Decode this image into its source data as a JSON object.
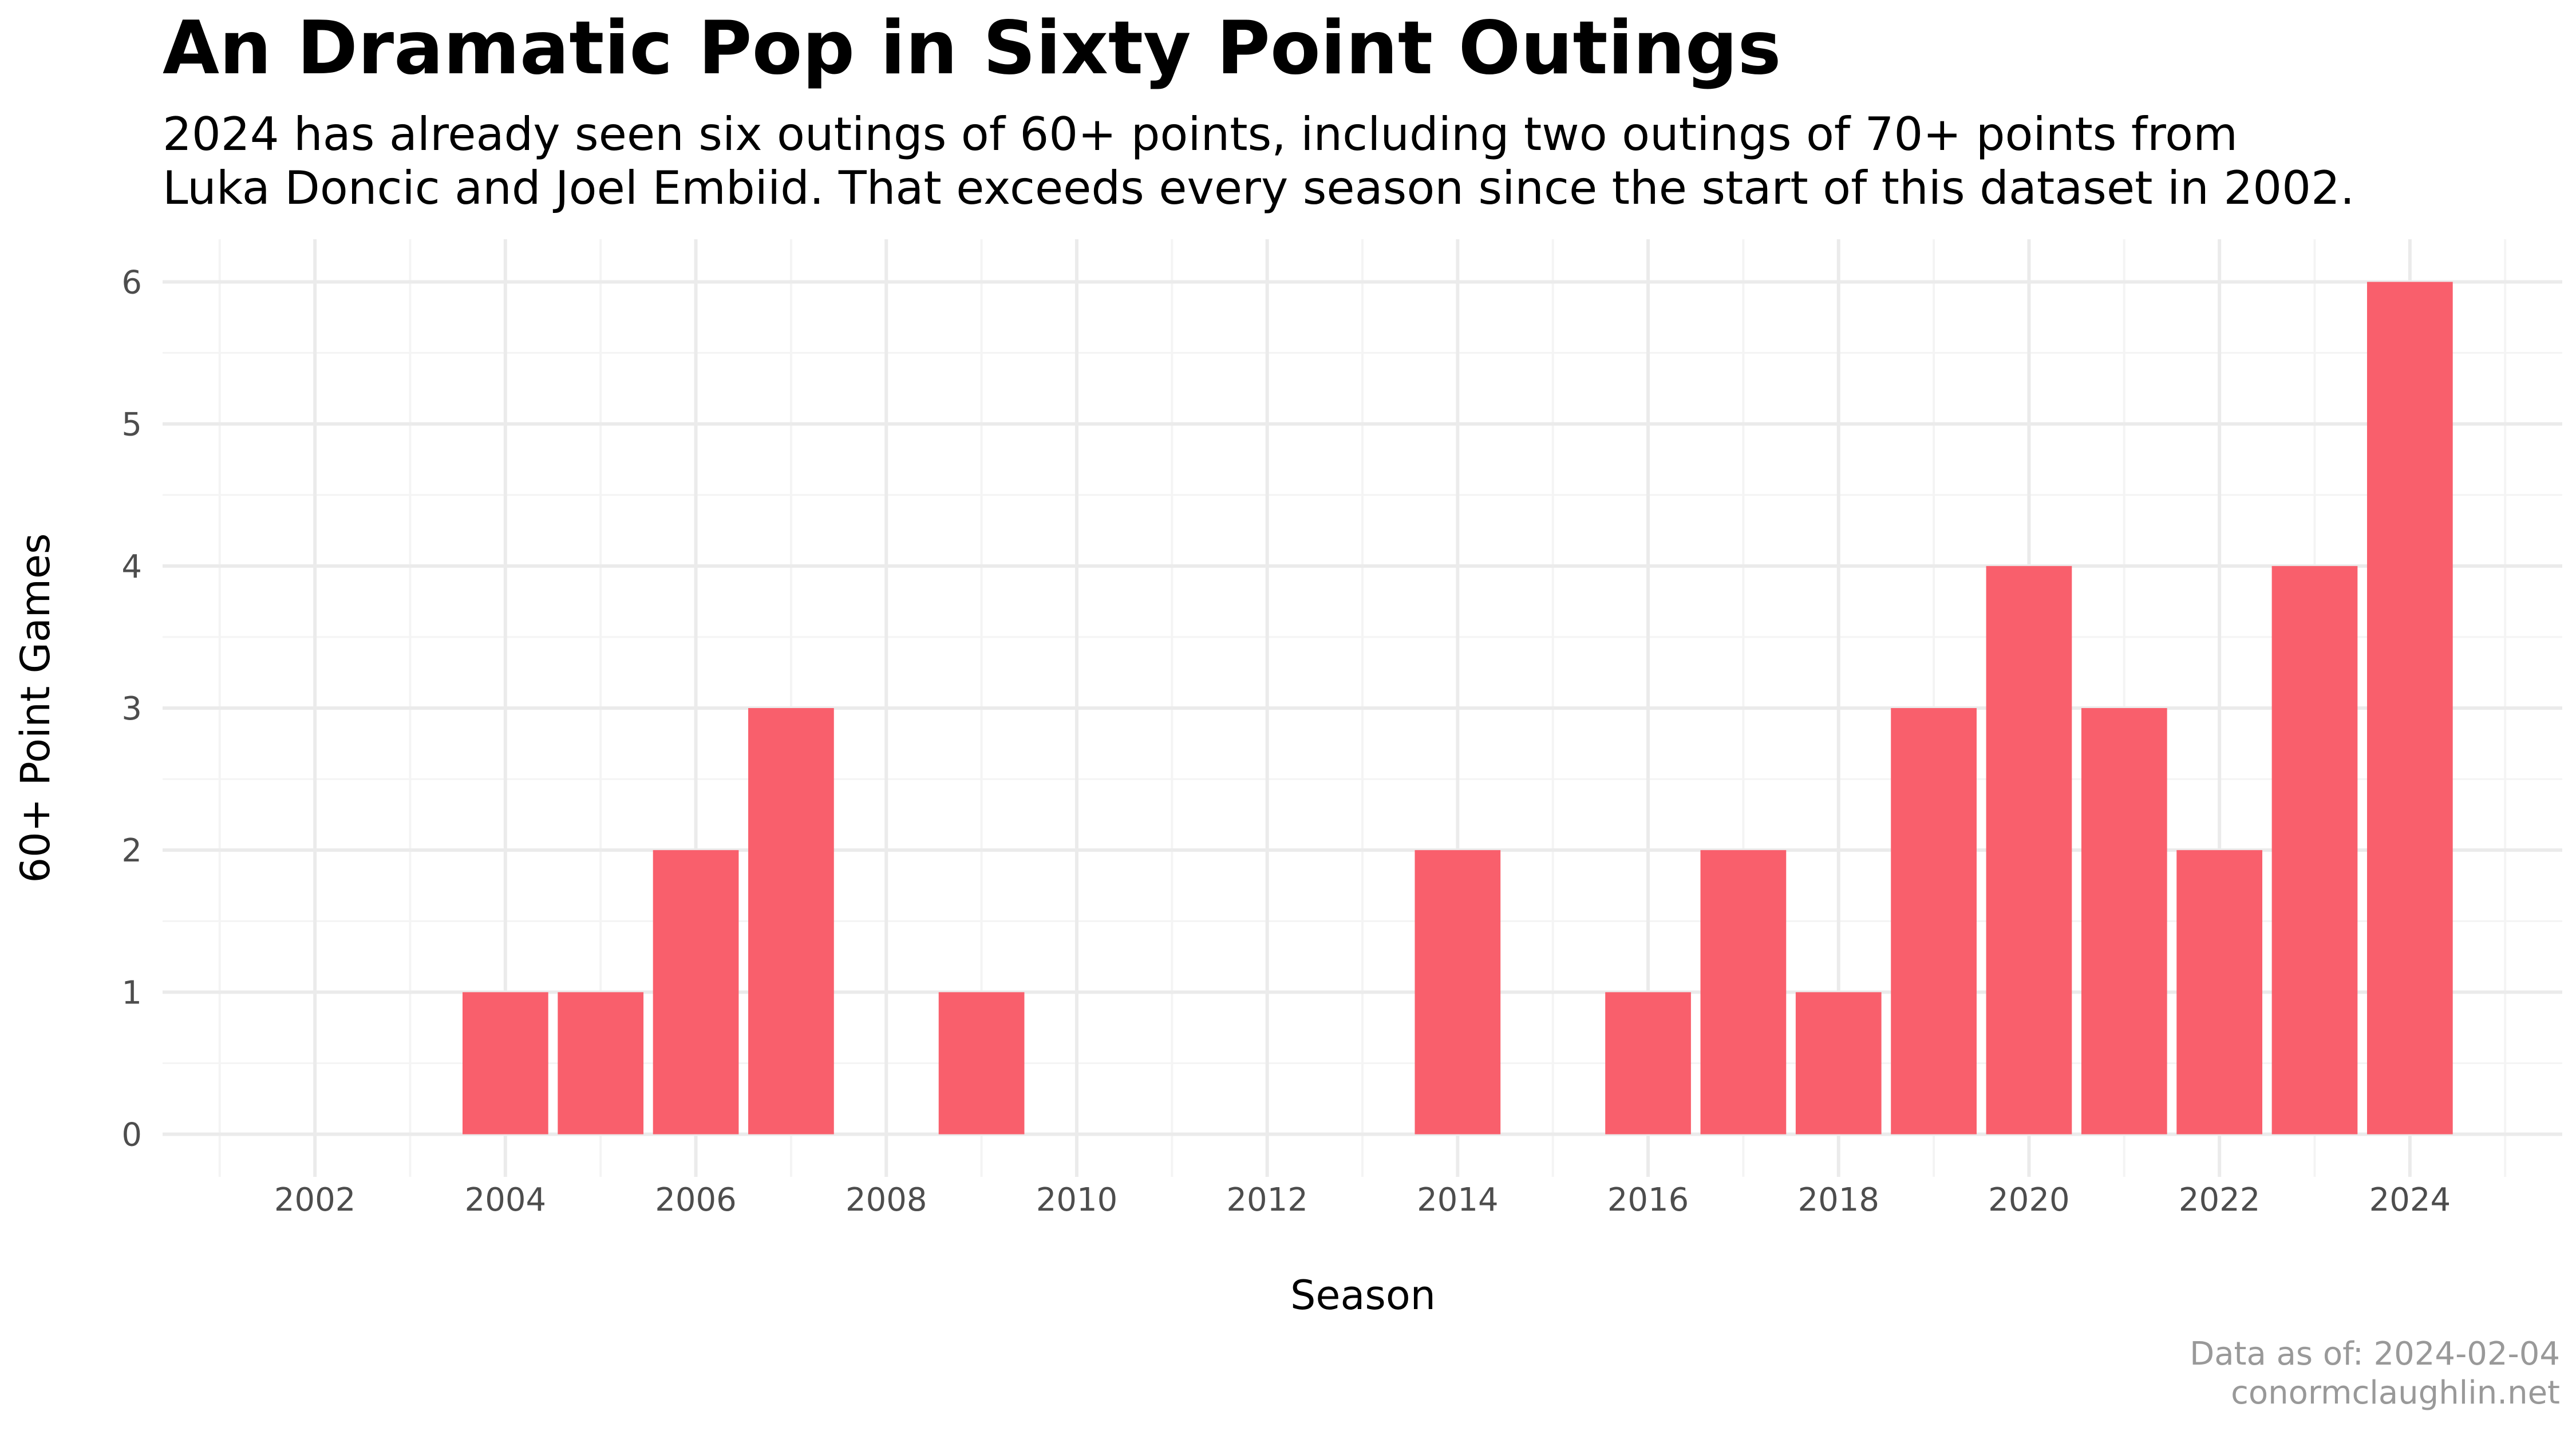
{
  "title": "An Dramatic Pop in Sixty Point Outings",
  "subtitle": {
    "line1": "2024 has already seen six outings of 60+ points, including two outings of 70+ points from",
    "line2": "Luka Doncic and Joel Embiid. That exceeds every season since the start of this dataset in 2002."
  },
  "caption": {
    "line1": "Data as of: 2024-02-04",
    "line2": "conormclaughlin.net"
  },
  "colors": {
    "bar": "#F95F6C",
    "grid_major": "#EBEBEB",
    "grid_minor": "#F4F4F4",
    "tick_text": "#4D4D4D",
    "caption_text": "#999999"
  },
  "chart_data": {
    "type": "bar",
    "xlabel": "Season",
    "ylabel": "60+ Point Games",
    "x": [
      2002,
      2003,
      2004,
      2005,
      2006,
      2007,
      2008,
      2009,
      2010,
      2011,
      2012,
      2013,
      2014,
      2015,
      2016,
      2017,
      2018,
      2019,
      2020,
      2021,
      2022,
      2023,
      2024
    ],
    "values": [
      0,
      0,
      1,
      1,
      2,
      3,
      0,
      1,
      0,
      0,
      0,
      0,
      2,
      0,
      1,
      2,
      1,
      3,
      4,
      3,
      2,
      4,
      6
    ],
    "xlim": [
      2000.4,
      2025.6
    ],
    "ylim": [
      -0.3,
      6.3
    ],
    "x_ticks": [
      2002,
      2004,
      2006,
      2008,
      2010,
      2012,
      2014,
      2016,
      2018,
      2020,
      2022,
      2024
    ],
    "y_ticks": [
      0,
      1,
      2,
      3,
      4,
      5,
      6
    ],
    "grid": true,
    "legend": "none"
  }
}
